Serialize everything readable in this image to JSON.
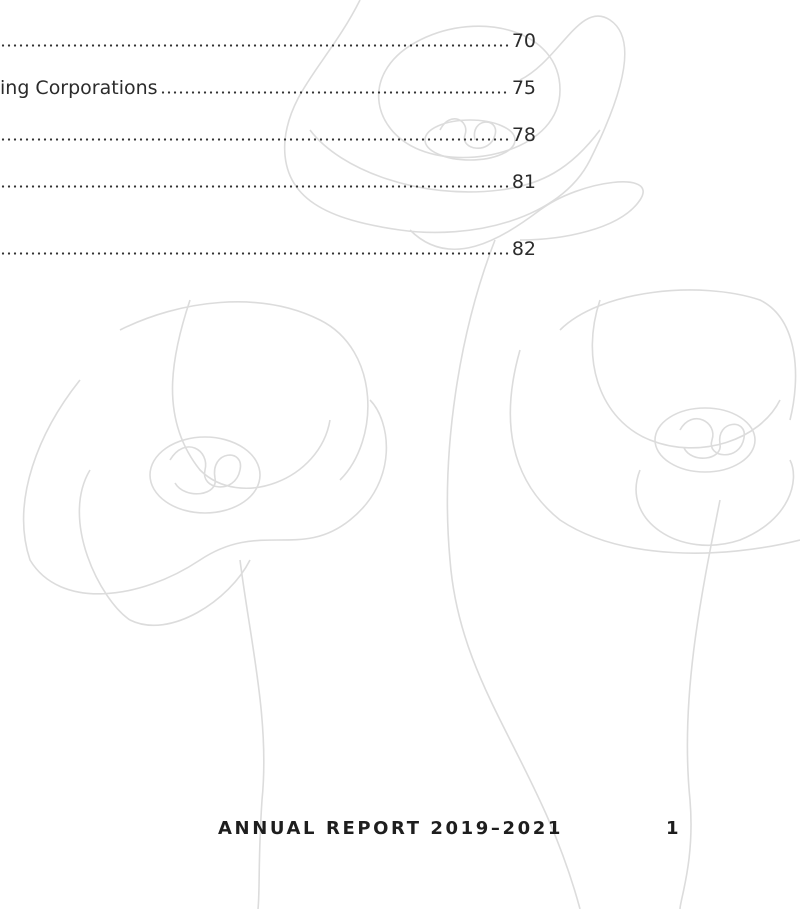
{
  "toc": {
    "entries": [
      {
        "page": "70"
      },
      {
        "label": "ing Corporations",
        "page": "75"
      },
      {
        "page": "78"
      },
      {
        "page": "81"
      },
      {
        "page": "82"
      }
    ]
  },
  "footer": {
    "title": "ANNUAL REPORT 2019–2021",
    "page_number": "1"
  }
}
